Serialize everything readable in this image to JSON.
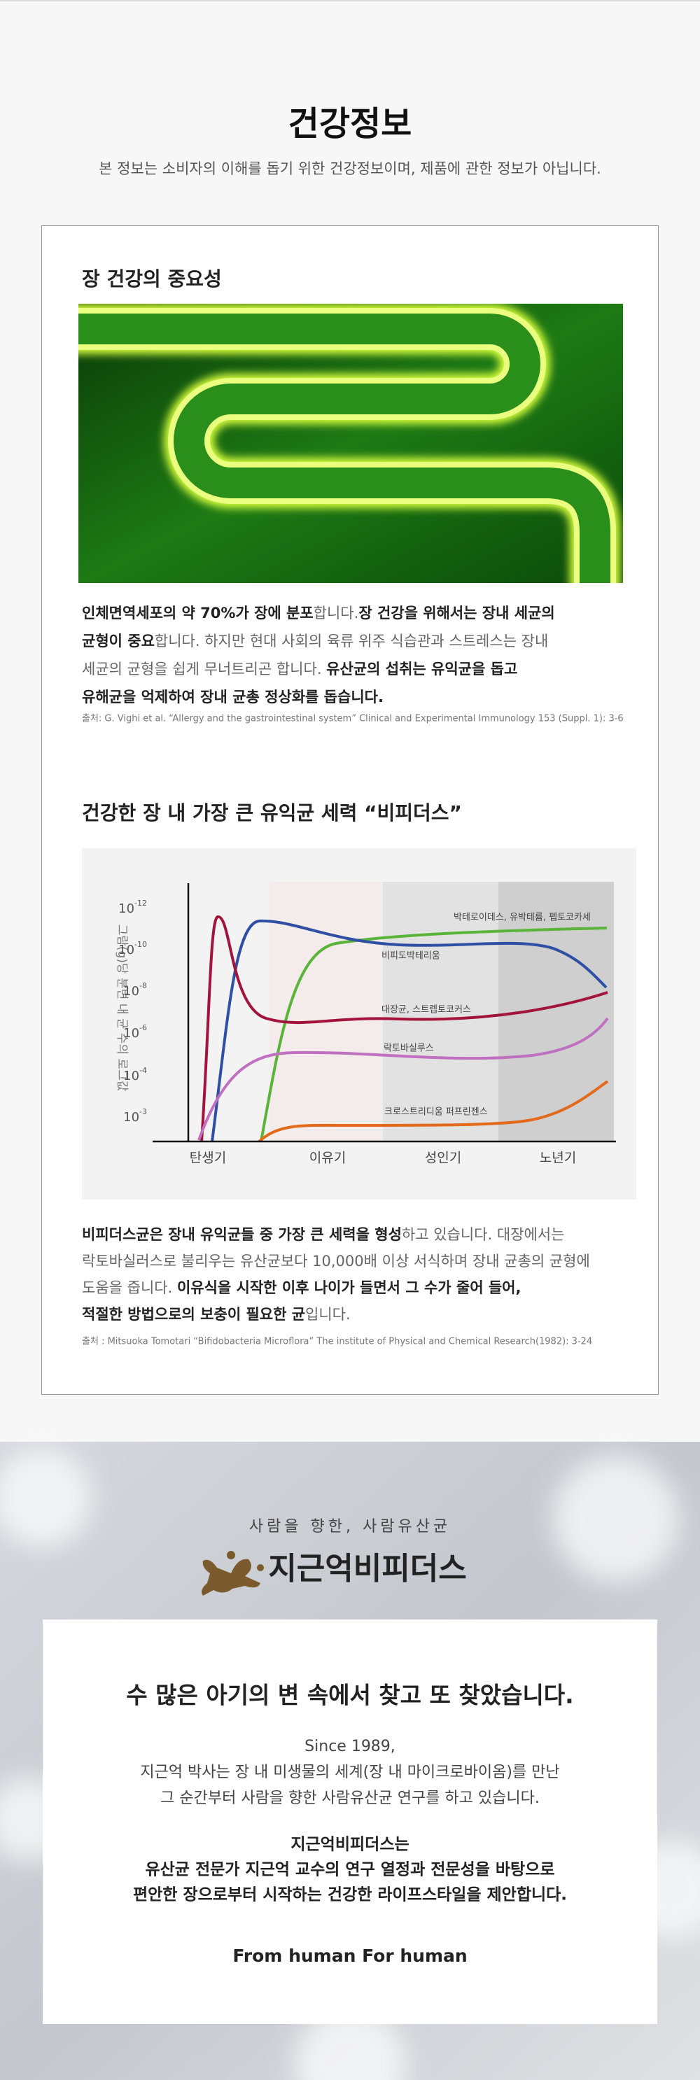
{
  "header": {
    "title": "건강정보",
    "subtitle": "본 정보는 소비자의 이해를 돕기 위한 건강정보이며, 제품에 관한 정보가 아닙니다."
  },
  "section1": {
    "heading": "장 건강의 중요성",
    "paragraph": [
      [
        {
          "text": "인체면역세포의 약 70%가 장에 분포",
          "bold": true
        },
        {
          "text": "합니다.",
          "bold": false
        },
        {
          "text": "장 건강을 위해서는 장내 세균의",
          "bold": true
        }
      ],
      [
        {
          "text": "균형이 중요",
          "bold": true
        },
        {
          "text": "합니다. 하지만 현대 사회의 육류 위주 식습관과 스트레스는 장내",
          "bold": false
        }
      ],
      [
        {
          "text": "세균의 균형을 쉽게  무너트리곤 합니다. ",
          "bold": false
        },
        {
          "text": "유산균의 섭취는 유익균을 돕고",
          "bold": true
        }
      ],
      [
        {
          "text": "유해균을 억제하여 장내 균총 정상화를 돕습니다.",
          "bold": true
        }
      ]
    ],
    "source": "출처: G. Vighi et al. “Allergy and the gastrointestinal system” Clinical and Experimental Immunology 153 (Suppl. 1): 3-6"
  },
  "section2": {
    "heading": "건강한 장 내 가장 큰 유익균 세력 “비피더스”",
    "chart": {
      "y_axis_label": "그람(g)당 분변 내 균 수의 로그값",
      "yticks": [
        {
          "base": "10",
          "exp": "-12"
        },
        {
          "base": "10",
          "exp": "-10"
        },
        {
          "base": "10",
          "exp": "-8"
        },
        {
          "base": "10",
          "exp": "-6"
        },
        {
          "base": "10",
          "exp": "-4"
        },
        {
          "base": "10",
          "exp": "-3"
        }
      ],
      "categories": [
        "탄생기",
        "이유기",
        "성인기",
        "노년기"
      ],
      "series_labels": [
        "박테로이데스, 유박테륨, 펩토코카세",
        "비피도박테리움",
        "대장균, 스트렙토코커스",
        "락토바실루스",
        "크로스트리디움 퍼프린젠스"
      ]
    },
    "paragraph": [
      [
        {
          "text": "비피더스균은 장내 유익균들 중 가장 큰 세력을 형성",
          "bold": true
        },
        {
          "text": "하고 있습니다. 대장에서는",
          "bold": false
        }
      ],
      [
        {
          "text": "락토바실러스로 불리우는 유산균보다 10,000배 이상 서식하며 장내 균총의 균형에",
          "bold": false
        }
      ],
      [
        {
          "text": "도움을 줍니다. ",
          "bold": false
        },
        {
          "text": "이유식을 시작한 이후 나이가 들면서  그 수가 줄어 들어,",
          "bold": true
        }
      ],
      [
        {
          "text": "적절한 방법으로의 보충이 필요한 균",
          "bold": true
        },
        {
          "text": "입니다.",
          "bold": false
        }
      ]
    ],
    "source": "출처 : Mitsuoka Tomotari “Bifidobacteria Microflora” The institute of Physical and Chemical Research(1982): 3-24"
  },
  "brand": {
    "tagline": "사람을 향한, 사람유산균",
    "name": "지근억비피더스"
  },
  "card": {
    "heading": "수 많은 아기의 변 속에서 찾고 또 찾았습니다.",
    "intro": [
      "Since 1989,",
      "지근억 박사는 장 내 미생물의 세계(장 내 마이크로바이옴)를 만난",
      "그 순간부터 사람을 향한 사람유산균 연구를 하고 있습니다."
    ],
    "statement": [
      "지근억비피더스는",
      "유산균 전문가 지근억 교수의 연구 열정과 전문성을 바탕으로",
      "편안한 장으로부터 시작하는 건강한 라이프스타일을 제안합니다."
    ],
    "slogan": "From human For human"
  }
}
